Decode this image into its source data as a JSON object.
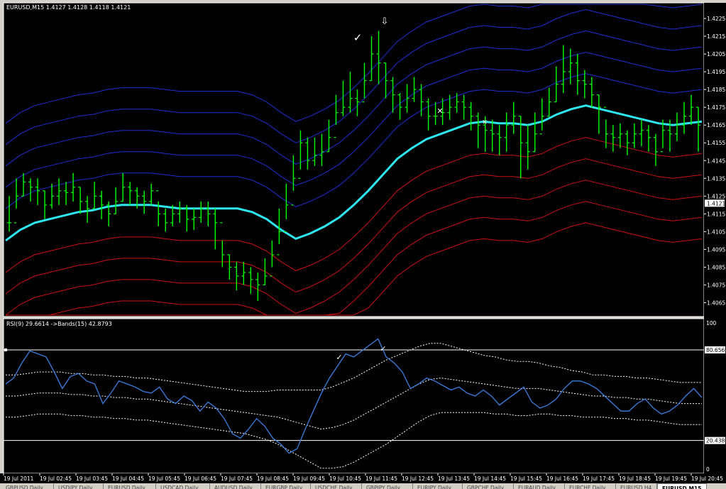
{
  "window": {
    "symbol_title": "EURUSD,M15  1.4127 1.4128 1.4118 1.4121",
    "indicator_title": "RSI(9) 29.6614  ->Bands(15) 42.8793"
  },
  "colors": {
    "background": "#000000",
    "price_bars": "#00ff00",
    "moving_average": "#2de6f0",
    "upper_bands": "#1c2fd2",
    "lower_bands": "#cc1111",
    "rsi_line": "#3d7fe0",
    "rsi_bands": "#ffffff",
    "grid": "#ffffff"
  },
  "chart_data": [
    {
      "type": "line",
      "subtype": "ohlc-bars with envelope bands",
      "title": "EURUSD,M15  1.4127 1.4128 1.4118 1.4121",
      "ylim": [
        1.4058,
        1.4233
      ],
      "y_ticks": [
        "1.4225",
        "1.4215",
        "1.4205",
        "1.4195",
        "1.4185",
        "1.4175",
        "1.4165",
        "1.4155",
        "1.4145",
        "1.4135",
        "1.4125",
        "1.4115",
        "1.4105",
        "1.4095",
        "1.4085",
        "1.4075",
        "1.4065"
      ],
      "current_price_label": "1.4121",
      "x_tick_labels": [
        "19 Jul 2011",
        "19 Jul 02:45",
        "19 Jul 03:45",
        "19 Jul 04:45",
        "19 Jul 05:45",
        "19 Jul 06:45",
        "19 Jul 07:45",
        "19 Jul 08:45",
        "19 Jul 09:45",
        "19 Jul 10:45",
        "19 Jul 11:45",
        "19 Jul 12:45",
        "19 Jul 13:45",
        "19 Jul 14:45",
        "19 Jul 15:45",
        "19 Jul 16:45",
        "19 Jul 17:45",
        "19 Jul 18:45",
        "19 Jul 19:45",
        "19 Jul 20:45"
      ],
      "bars_close": [
        1.411,
        1.4125,
        1.4133,
        1.413,
        1.4128,
        1.412,
        1.4125,
        1.4128,
        1.4127,
        1.413,
        1.4122,
        1.4118,
        1.4125,
        1.412,
        1.4115,
        1.4122,
        1.413,
        1.4128,
        1.4125,
        1.4122,
        1.4128,
        1.4115,
        1.411,
        1.4115,
        1.4118,
        1.4112,
        1.4113,
        1.4118,
        1.4115,
        1.411,
        1.4092,
        1.4085,
        1.408,
        1.4082,
        1.4078,
        1.4075,
        1.408,
        1.4092,
        1.4105,
        1.412,
        1.4135,
        1.4155,
        1.4145,
        1.4148,
        1.415,
        1.4158,
        1.4172,
        1.4175,
        1.418,
        1.4178,
        1.419,
        1.4205,
        1.42,
        1.419,
        1.4182,
        1.4175,
        1.418,
        1.4185,
        1.4178,
        1.417,
        1.417,
        1.4172,
        1.4175,
        1.4178,
        1.4175,
        1.417,
        1.4165,
        1.4162,
        1.416,
        1.4158,
        1.4165,
        1.417,
        1.4155,
        1.415,
        1.416,
        1.417,
        1.4178,
        1.4188,
        1.4195,
        1.42,
        1.419,
        1.4188,
        1.4182,
        1.4175,
        1.416,
        1.4158,
        1.416,
        1.4155,
        1.416,
        1.4162,
        1.4158,
        1.415,
        1.4162,
        1.416,
        1.4165,
        1.417,
        1.4175,
        1.4165
      ],
      "bars_high": [
        1.4125,
        1.4135,
        1.4138,
        1.4135,
        1.4135,
        1.4128,
        1.4132,
        1.4135,
        1.4133,
        1.4138,
        1.413,
        1.4125,
        1.4133,
        1.4128,
        1.4122,
        1.413,
        1.4138,
        1.4133,
        1.413,
        1.4128,
        1.4132,
        1.4122,
        1.4118,
        1.412,
        1.4122,
        1.412,
        1.4118,
        1.4122,
        1.4122,
        1.4118,
        1.41,
        1.4092,
        1.4088,
        1.4088,
        1.4085,
        1.4082,
        1.409,
        1.41,
        1.4118,
        1.4132,
        1.4148,
        1.4162,
        1.4158,
        1.4158,
        1.416,
        1.4168,
        1.4182,
        1.419,
        1.4195,
        1.4185,
        1.42,
        1.4215,
        1.4218,
        1.42,
        1.4192,
        1.4183,
        1.4188,
        1.4192,
        1.4188,
        1.418,
        1.4178,
        1.418,
        1.4182,
        1.4183,
        1.4182,
        1.4178,
        1.4172,
        1.417,
        1.4168,
        1.4165,
        1.4172,
        1.4178,
        1.417,
        1.4165,
        1.4172,
        1.418,
        1.4186,
        1.4198,
        1.421,
        1.4208,
        1.4205,
        1.4196,
        1.4192,
        1.4182,
        1.4168,
        1.4165,
        1.4166,
        1.4162,
        1.4166,
        1.4168,
        1.4165,
        1.416,
        1.4168,
        1.4168,
        1.4172,
        1.4178,
        1.4182,
        1.4175
      ],
      "bars_low": [
        1.4105,
        1.4118,
        1.4125,
        1.4122,
        1.412,
        1.4112,
        1.4118,
        1.412,
        1.412,
        1.4122,
        1.4115,
        1.411,
        1.4118,
        1.4112,
        1.4108,
        1.4115,
        1.4122,
        1.412,
        1.4118,
        1.4115,
        1.412,
        1.4108,
        1.4105,
        1.4108,
        1.411,
        1.4105,
        1.4106,
        1.411,
        1.4108,
        1.4095,
        1.4085,
        1.4078,
        1.4072,
        1.4075,
        1.407,
        1.4066,
        1.4075,
        1.4085,
        1.4098,
        1.4112,
        1.4128,
        1.414,
        1.414,
        1.4142,
        1.4142,
        1.415,
        1.4165,
        1.417,
        1.4172,
        1.417,
        1.418,
        1.419,
        1.4188,
        1.418,
        1.4172,
        1.4168,
        1.4172,
        1.4178,
        1.417,
        1.4162,
        1.4165,
        1.4165,
        1.4168,
        1.4172,
        1.4168,
        1.4162,
        1.4152,
        1.415,
        1.415,
        1.4148,
        1.415,
        1.416,
        1.4135,
        1.414,
        1.415,
        1.4162,
        1.417,
        1.4178,
        1.4183,
        1.4188,
        1.4182,
        1.418,
        1.4175,
        1.416,
        1.4152,
        1.415,
        1.4152,
        1.4148,
        1.4152,
        1.4153,
        1.415,
        1.4142,
        1.4152,
        1.415,
        1.4156,
        1.416,
        1.4165,
        1.415
      ],
      "moving_average": [
        1.41,
        1.4106,
        1.411,
        1.4112,
        1.4114,
        1.4116,
        1.4117,
        1.4119,
        1.412,
        1.412,
        1.412,
        1.4119,
        1.4118,
        1.4118,
        1.4118,
        1.4118,
        1.4118,
        1.4116,
        1.4112,
        1.4106,
        1.4101,
        1.4104,
        1.4108,
        1.4113,
        1.412,
        1.4128,
        1.4137,
        1.4146,
        1.4152,
        1.4157,
        1.416,
        1.4163,
        1.4166,
        1.4167,
        1.4166,
        1.4166,
        1.4165,
        1.4167,
        1.4171,
        1.4174,
        1.4176,
        1.4174,
        1.4172,
        1.417,
        1.4168,
        1.4166,
        1.4165,
        1.4166,
        1.4167
      ],
      "upper_bands_offsets": [
        0.0018,
        0.003,
        0.0042,
        0.0054,
        0.0066
      ],
      "lower_bands_offsets": [
        -0.0018,
        -0.003,
        -0.0042,
        -0.0054,
        -0.0066
      ],
      "annotations": [
        "✓",
        "⇩",
        "✕",
        "✕"
      ]
    },
    {
      "type": "line",
      "title": "RSI(9) 29.6614  ->Bands(15) 42.8793",
      "ylim": [
        0,
        100
      ],
      "y_ticks": [
        "100",
        "80.6569",
        "20.4380",
        "0"
      ],
      "levels": [
        80.6569,
        20.438
      ],
      "rsi": [
        58,
        62,
        72,
        80,
        78,
        76,
        66,
        55,
        63,
        65,
        60,
        58,
        45,
        52,
        60,
        58,
        56,
        53,
        52,
        56,
        48,
        45,
        50,
        47,
        40,
        46,
        42,
        35,
        25,
        22,
        28,
        35,
        30,
        22,
        18,
        12,
        15,
        28,
        40,
        52,
        62,
        70,
        78,
        76,
        80,
        84,
        88,
        76,
        72,
        66,
        55,
        58,
        62,
        60,
        57,
        54,
        56,
        52,
        50,
        54,
        50,
        44,
        48,
        52,
        56,
        46,
        42,
        44,
        48,
        55,
        60,
        60,
        58,
        55,
        50,
        45,
        40,
        40,
        45,
        48,
        42,
        38,
        40,
        44,
        50,
        55,
        49
      ],
      "band_mid": [
        50,
        50,
        51,
        52,
        52,
        52,
        51,
        51,
        50,
        50,
        49,
        49,
        48,
        48,
        47,
        46,
        45,
        44,
        43,
        42,
        41,
        40,
        39,
        38,
        37,
        36,
        34,
        32,
        30,
        28,
        29,
        31,
        34,
        38,
        42,
        46,
        50,
        54,
        58,
        61,
        62,
        61,
        60,
        59,
        58,
        57,
        56,
        55,
        55,
        55,
        54,
        53,
        52,
        51,
        50,
        50,
        49,
        49,
        48,
        48,
        47,
        46,
        45,
        45,
        45
      ],
      "band_width": [
        14,
        14,
        14,
        14,
        14,
        14,
        14,
        14,
        14,
        14,
        14,
        14,
        14,
        14,
        14,
        14,
        14,
        14,
        14,
        14,
        14,
        14,
        14,
        15,
        16,
        18,
        20,
        22,
        24,
        26,
        27,
        28,
        28,
        28,
        28,
        28,
        27,
        26,
        25,
        24,
        23,
        22,
        21,
        20,
        19,
        19,
        18,
        18,
        18,
        17,
        16,
        16,
        15,
        15,
        14,
        14,
        14,
        14,
        14,
        14,
        14,
        14,
        14,
        14,
        14
      ],
      "annotations": [
        "✓",
        "✓"
      ]
    }
  ],
  "tabs": [
    "GBPUSD,Daily",
    "USDJPY,Daily",
    "EURUSD,Daily",
    "USDCAD,Daily",
    "AUDUSD,Daily",
    "EURGBP,Daily",
    "USDCHF,Daily",
    "GBPJPY,Daily",
    "EURJPY,Daily",
    "GBPCHF,Daily",
    "EURAUD,Daily",
    "EURCHF,Daily",
    "EURUSD,H4",
    "EURUSD,M15"
  ]
}
